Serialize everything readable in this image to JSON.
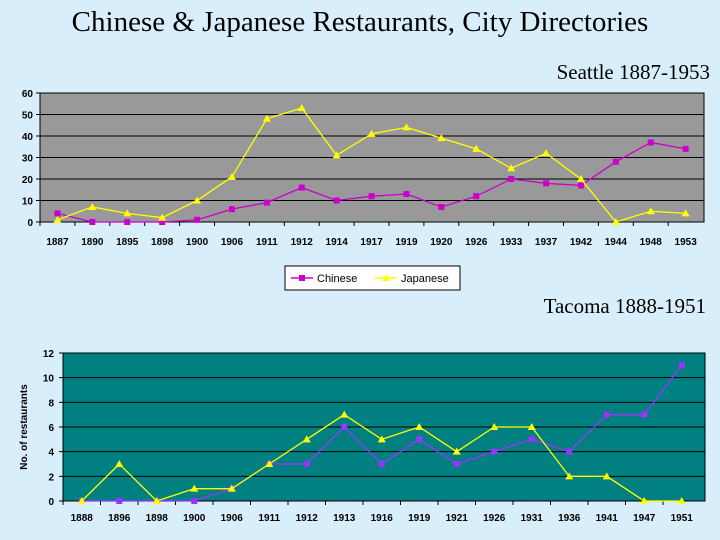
{
  "page": {
    "title": "Chinese & Japanese Restaurants, City Directories",
    "background": "#d9eefb"
  },
  "chart_data": [
    {
      "type": "line",
      "subtitle": "Seattle 1887-1953",
      "categories": [
        "1887",
        "1890",
        "1895",
        "1898",
        "1900",
        "1906",
        "1911",
        "1912",
        "1914",
        "1917",
        "1919",
        "1920",
        "1926",
        "1933",
        "1937",
        "1942",
        "1944",
        "1948",
        "1953"
      ],
      "series": [
        {
          "name": "Chinese",
          "color": "#cc00cc",
          "marker": "square",
          "values": [
            4,
            0,
            0,
            0,
            1,
            6,
            9,
            16,
            10,
            12,
            13,
            7,
            12,
            20,
            18,
            17,
            28,
            37,
            34
          ]
        },
        {
          "name": "Japanese",
          "color": "#ffff00",
          "marker": "triangle",
          "values": [
            1,
            7,
            4,
            2,
            10,
            21,
            48,
            53,
            31,
            41,
            44,
            39,
            34,
            25,
            32,
            20,
            0,
            5,
            4
          ]
        }
      ],
      "ylim": [
        0,
        60
      ],
      "yticks": [
        0,
        10,
        20,
        30,
        40,
        50,
        60
      ],
      "plot_background": "#999999",
      "grid": true,
      "legend": "bottom-center",
      "ylabel": ""
    },
    {
      "type": "line",
      "subtitle": "Tacoma 1888-1951",
      "categories": [
        "1888",
        "1896",
        "1898",
        "1900",
        "1906",
        "1911",
        "1912",
        "1913",
        "1916",
        "1919",
        "1921",
        "1926",
        "1931",
        "1936",
        "1941",
        "1947",
        "1951"
      ],
      "series": [
        {
          "color": "#9933ff",
          "marker": "square",
          "values": [
            0,
            0,
            0,
            0,
            1,
            3,
            3,
            6,
            3,
            5,
            3,
            4,
            5,
            4,
            7,
            7,
            11
          ]
        },
        {
          "color": "#ffff00",
          "marker": "triangle",
          "values": [
            0,
            3,
            0,
            1,
            1,
            3,
            5,
            7,
            5,
            6,
            4,
            6,
            6,
            2,
            2,
            0,
            0
          ]
        }
      ],
      "ylim": [
        0,
        12
      ],
      "yticks": [
        0,
        2,
        4,
        6,
        8,
        10,
        12
      ],
      "plot_background": "#008080",
      "grid": true,
      "ylabel": "No. of restaurants"
    }
  ]
}
